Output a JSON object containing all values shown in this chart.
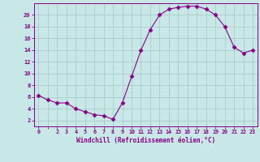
{
  "x": [
    0,
    1,
    2,
    3,
    4,
    5,
    6,
    7,
    8,
    9,
    10,
    11,
    12,
    13,
    14,
    15,
    16,
    17,
    18,
    19,
    20,
    21,
    22,
    23
  ],
  "y": [
    6.3,
    5.5,
    5.0,
    5.0,
    4.0,
    3.5,
    3.0,
    2.8,
    2.2,
    5.0,
    9.5,
    14.0,
    17.5,
    20.0,
    21.0,
    21.3,
    21.5,
    21.5,
    21.0,
    20.0,
    18.0,
    14.5,
    13.5,
    14.0
  ],
  "line_color": "#880088",
  "marker": "D",
  "marker_size": 2.5,
  "background_color": "#c8e8e8",
  "grid_color": "#aacccc",
  "xlabel": "Windchill (Refroidissement éolien,°C)",
  "xlabel_color": "#880088",
  "xtick_labels": [
    "0",
    "",
    "2",
    "3",
    "4",
    "5",
    "6",
    "7",
    "8",
    "9",
    "10",
    "11",
    "12",
    "13",
    "14",
    "15",
    "16",
    "17",
    "18",
    "19",
    "20",
    "21",
    "22",
    "23"
  ],
  "ytick_values": [
    2,
    4,
    6,
    8,
    10,
    12,
    14,
    16,
    18,
    20
  ],
  "ylim": [
    1,
    22
  ],
  "xlim": [
    -0.5,
    23.5
  ],
  "tick_color": "#880088"
}
